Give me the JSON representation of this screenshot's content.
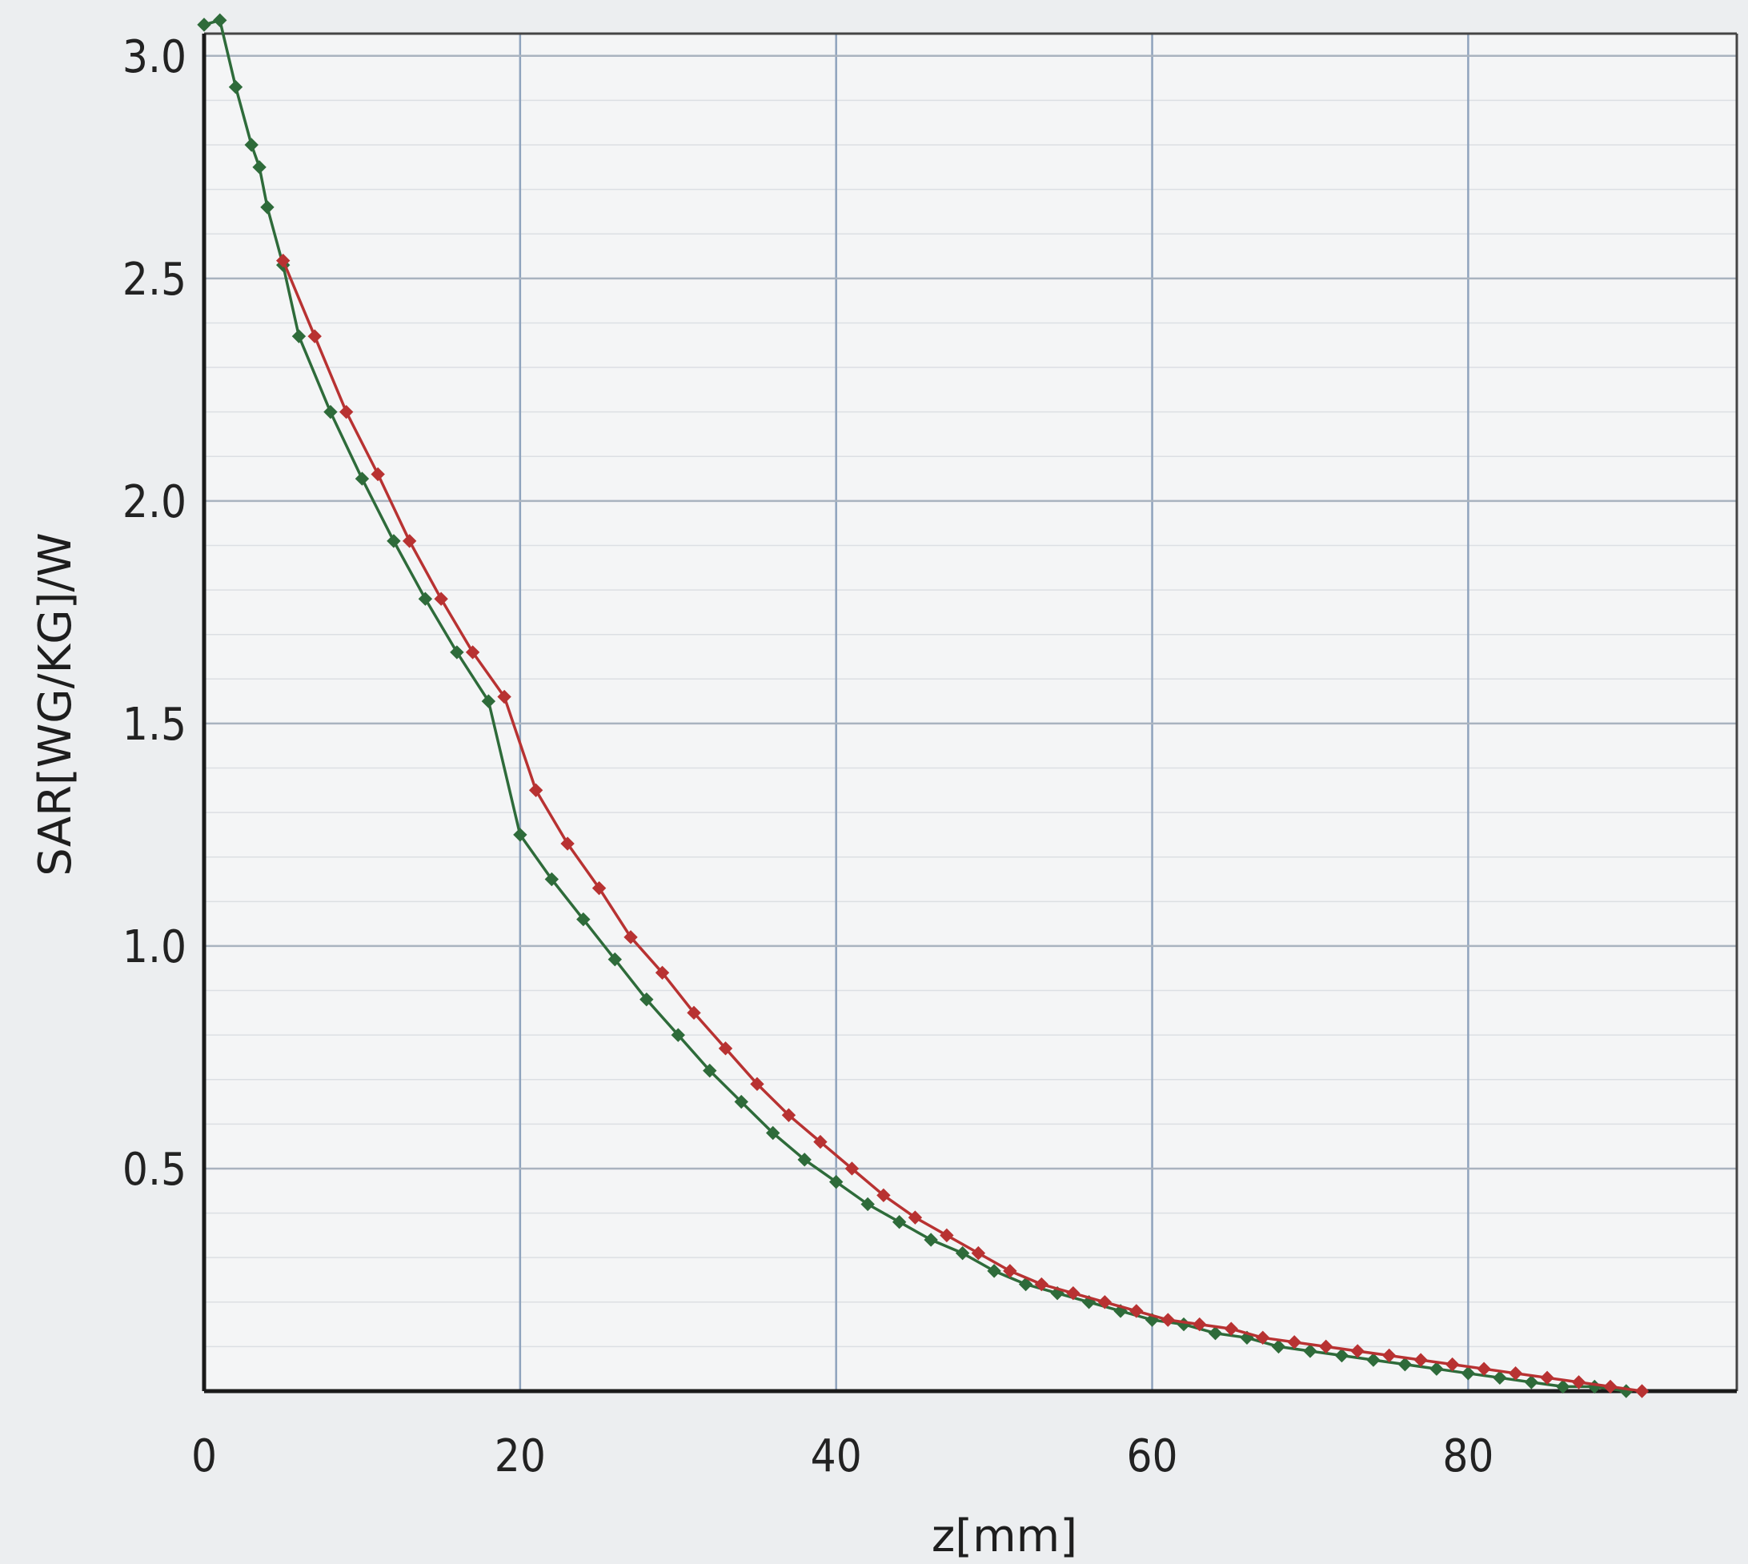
{
  "chart_data": {
    "type": "line",
    "title": "",
    "xlabel": "z[mm]",
    "ylabel": "SAR[WG/KG]/W",
    "xlim": [
      0,
      97
    ],
    "ylim": [
      0,
      3.05
    ],
    "xticks": [
      0,
      20,
      40,
      60,
      80
    ],
    "xtick_labels": [
      "0",
      "20",
      "40",
      "60",
      "80"
    ],
    "yticks": [
      0.5,
      1.0,
      1.5,
      2.0,
      2.5,
      3.0
    ],
    "ytick_labels": [
      "0.5",
      "1.0",
      "1.5",
      "2.0",
      "2.5",
      "3.0"
    ],
    "grid": true,
    "legend": "none",
    "series": [
      {
        "color": "#2e6b3a",
        "marker": "diamond",
        "x": [
          0,
          1,
          2,
          3,
          3.5,
          4,
          5,
          6,
          8,
          10,
          12,
          14,
          16,
          18,
          20,
          22,
          24,
          26,
          28,
          30,
          32,
          34,
          36,
          38,
          40,
          42,
          44,
          46,
          48,
          50,
          52,
          54,
          56,
          58,
          60,
          62,
          64,
          66,
          68,
          70,
          72,
          74,
          76,
          78,
          80,
          82,
          84,
          86,
          88,
          90
        ],
        "y": [
          3.07,
          3.08,
          2.93,
          2.8,
          2.75,
          2.66,
          2.53,
          2.37,
          2.2,
          2.05,
          1.91,
          1.78,
          1.66,
          1.55,
          1.25,
          1.15,
          1.06,
          0.97,
          0.88,
          0.8,
          0.72,
          0.65,
          0.58,
          0.52,
          0.47,
          0.42,
          0.38,
          0.34,
          0.31,
          0.27,
          0.24,
          0.22,
          0.2,
          0.18,
          0.16,
          0.15,
          0.13,
          0.12,
          0.1,
          0.09,
          0.08,
          0.07,
          0.06,
          0.05,
          0.04,
          0.03,
          0.02,
          0.01,
          0.01,
          0.0
        ]
      },
      {
        "color": "#b83232",
        "marker": "diamond",
        "x": [
          5,
          7,
          9,
          11,
          13,
          15,
          17,
          19,
          21,
          23,
          25,
          27,
          29,
          31,
          33,
          35,
          37,
          39,
          41,
          43,
          45,
          47,
          49,
          51,
          53,
          55,
          57,
          59,
          61,
          63,
          65,
          67,
          69,
          71,
          73,
          75,
          77,
          79,
          81,
          83,
          85,
          87,
          89,
          91
        ],
        "y": [
          2.54,
          2.37,
          2.2,
          2.06,
          1.91,
          1.78,
          1.66,
          1.56,
          1.35,
          1.23,
          1.13,
          1.02,
          0.94,
          0.85,
          0.77,
          0.69,
          0.62,
          0.56,
          0.5,
          0.44,
          0.39,
          0.35,
          0.31,
          0.27,
          0.24,
          0.22,
          0.2,
          0.18,
          0.16,
          0.15,
          0.14,
          0.12,
          0.11,
          0.1,
          0.09,
          0.08,
          0.07,
          0.06,
          0.05,
          0.04,
          0.03,
          0.02,
          0.01,
          0.0
        ]
      }
    ]
  }
}
